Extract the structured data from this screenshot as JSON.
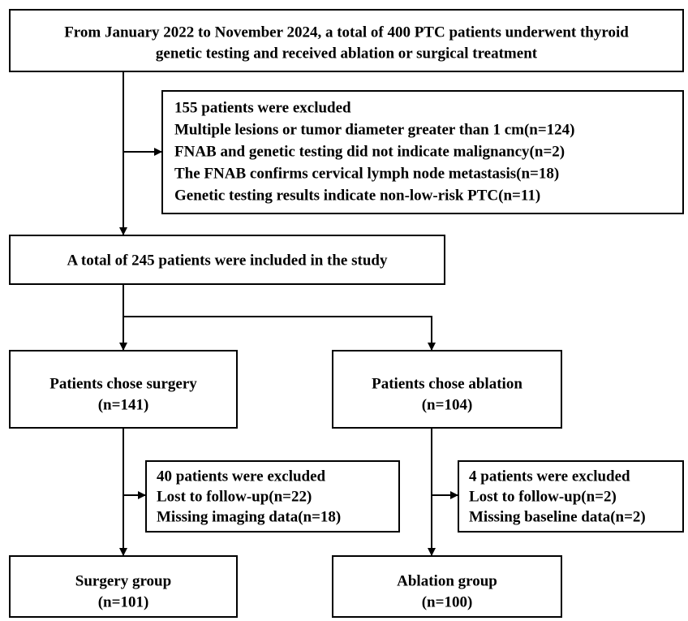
{
  "nodes": [
    {
      "lines": [
        "From January 2022 to November 2024, a total of 400 PTC patients underwent thyroid",
        "genetic testing and received ablation or surgical treatment"
      ]
    },
    {
      "lines": [
        "155 patients were excluded",
        "Multiple lesions or tumor diameter greater than 1 cm(n=124)",
        "FNAB and genetic testing did not indicate malignancy(n=2)",
        "The FNAB confirms cervical lymph node metastasis(n=18)",
        "Genetic testing results indicate non-low-risk PTC(n=11)"
      ]
    },
    {
      "lines": [
        "A total of 245 patients were included in the study"
      ]
    },
    {
      "lines": [
        "Patients chose surgery",
        "(n=141)"
      ]
    },
    {
      "lines": [
        "Patients chose ablation",
        "(n=104)"
      ]
    },
    {
      "lines": [
        "40 patients were excluded",
        "Lost to follow-up(n=22)",
        "Missing imaging data(n=18)"
      ]
    },
    {
      "lines": [
        "4 patients were excluded",
        "Lost to follow-up(n=2)",
        "Missing baseline data(n=2)"
      ]
    },
    {
      "lines": [
        "Surgery group",
        "(n=101)"
      ]
    },
    {
      "lines": [
        "Ablation group",
        "(n=100)"
      ]
    }
  ]
}
